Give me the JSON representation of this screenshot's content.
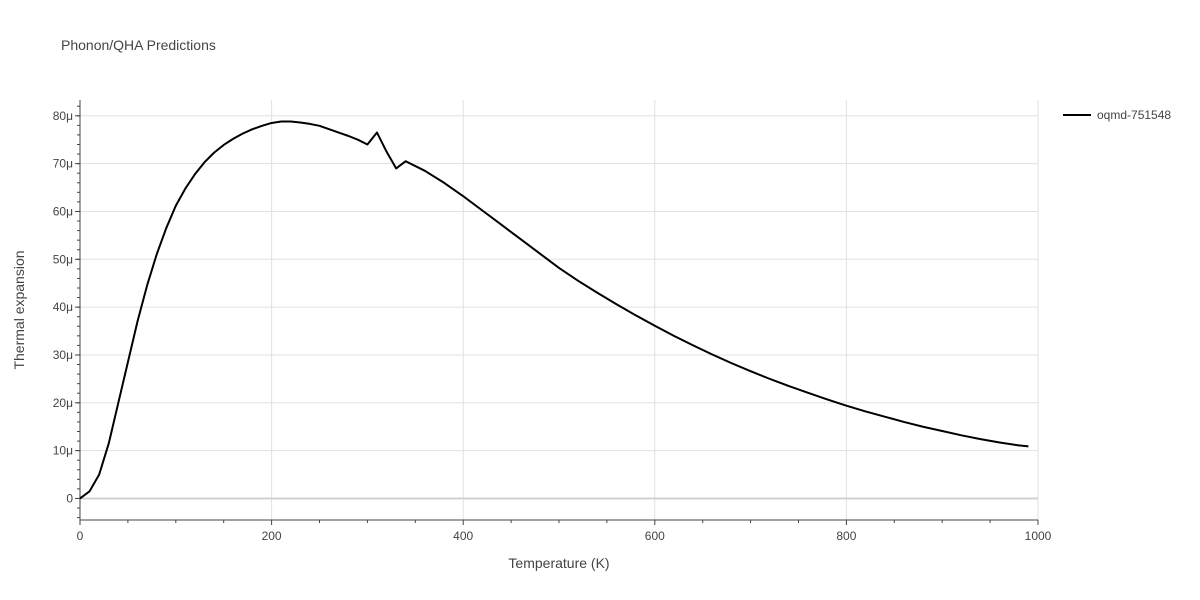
{
  "chart_data": {
    "type": "line",
    "title": "Phonon/QHA Predictions",
    "xlabel": "Temperature (K)",
    "ylabel": "Thermal expansion",
    "xlim": [
      0,
      1000
    ],
    "ylim": [
      -4.5e-06,
      8.33e-05
    ],
    "x_ticks": [
      0,
      200,
      400,
      600,
      800,
      1000
    ],
    "x_tick_labels": [
      "0",
      "200",
      "400",
      "600",
      "800",
      "1000"
    ],
    "y_ticks": [
      0,
      1e-05,
      2e-05,
      3e-05,
      4e-05,
      5e-05,
      6e-05,
      7e-05,
      8e-05
    ],
    "y_tick_labels": [
      "0",
      "10μ",
      "20μ",
      "30μ",
      "40μ",
      "50μ",
      "60μ",
      "70μ",
      "80μ"
    ],
    "grid": true,
    "legend": "top-right",
    "series": [
      {
        "name": "oqmd-751548",
        "color": "#000000",
        "x": [
          0,
          10,
          20,
          30,
          40,
          50,
          60,
          70,
          80,
          90,
          100,
          110,
          120,
          130,
          140,
          150,
          160,
          170,
          180,
          190,
          200,
          210,
          220,
          230,
          240,
          250,
          260,
          270,
          280,
          290,
          300,
          310,
          320,
          330,
          340,
          360,
          380,
          400,
          420,
          440,
          460,
          480,
          500,
          520,
          540,
          560,
          580,
          600,
          620,
          640,
          660,
          680,
          700,
          720,
          740,
          760,
          780,
          800,
          820,
          840,
          860,
          880,
          900,
          920,
          940,
          960,
          980,
          990
        ],
        "y": [
          0,
          1.5e-06,
          5e-06,
          1.15e-05,
          2e-05,
          2.85e-05,
          3.7e-05,
          4.45e-05,
          5.1e-05,
          5.65e-05,
          6.12e-05,
          6.48e-05,
          6.78e-05,
          7.03e-05,
          7.23e-05,
          7.39e-05,
          7.52e-05,
          7.63e-05,
          7.72e-05,
          7.79e-05,
          7.85e-05,
          7.88e-05,
          7.88e-05,
          7.86e-05,
          7.83e-05,
          7.79e-05,
          7.72e-05,
          7.65e-05,
          7.58e-05,
          7.5e-05,
          7.4e-05,
          7.65e-05,
          7.25e-05,
          6.9e-05,
          7.05e-05,
          6.85e-05,
          6.6e-05,
          6.32e-05,
          6.02e-05,
          5.72e-05,
          5.42e-05,
          5.12e-05,
          4.82e-05,
          4.55e-05,
          4.3e-05,
          4.06e-05,
          3.83e-05,
          3.61e-05,
          3.4e-05,
          3.2e-05,
          3.01e-05,
          2.83e-05,
          2.66e-05,
          2.5e-05,
          2.35e-05,
          2.21e-05,
          2.07e-05,
          1.94e-05,
          1.82e-05,
          1.71e-05,
          1.6e-05,
          1.5e-05,
          1.41e-05,
          1.32e-05,
          1.24e-05,
          1.17e-05,
          1.11e-05,
          1.09e-05
        ]
      }
    ]
  }
}
